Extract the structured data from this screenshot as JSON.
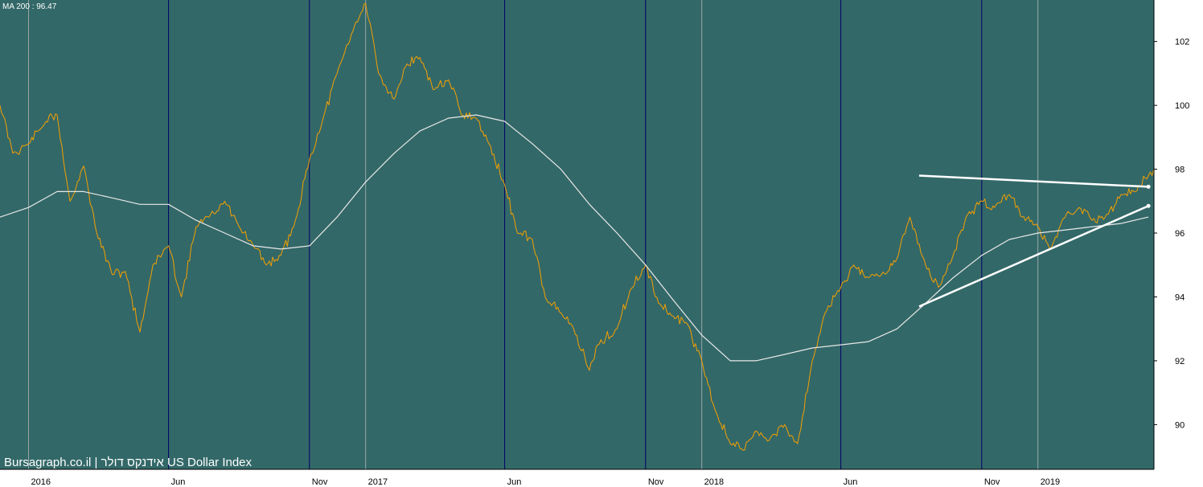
{
  "chart_data": {
    "type": "line",
    "title": "Bursagraph.co.il | אידנקס דולר US Dollar Index",
    "indicator_label": "MA 200 : 96.47",
    "y_ticks": [
      90,
      92,
      94,
      96,
      98,
      100,
      102
    ],
    "ylim": [
      88.6,
      103.3
    ],
    "x_tick_labels": [
      {
        "label": "2016",
        "date": "2016-01-01",
        "year_start": true
      },
      {
        "label": "Jun",
        "date": "2016-06-01",
        "year_start": false
      },
      {
        "label": "Nov",
        "date": "2016-11-01",
        "year_start": false
      },
      {
        "label": "2017",
        "date": "2017-01-01",
        "year_start": true
      },
      {
        "label": "Jun",
        "date": "2017-06-01",
        "year_start": false
      },
      {
        "label": "Nov",
        "date": "2017-11-01",
        "year_start": false
      },
      {
        "label": "2018",
        "date": "2018-01-01",
        "year_start": true
      },
      {
        "label": "Jun",
        "date": "2018-06-01",
        "year_start": false
      },
      {
        "label": "Nov",
        "date": "2018-11-01",
        "year_start": false
      },
      {
        "label": "2019",
        "date": "2019-01-01",
        "year_start": true
      }
    ],
    "xlim": [
      "2015-12-01",
      "2019-05-07"
    ],
    "grid": true,
    "series": [
      {
        "name": "US Dollar Index",
        "color": "#f5a000",
        "x": [
          "2015-12-01",
          "2015-12-15",
          "2016-01-01",
          "2016-01-20",
          "2016-02-01",
          "2016-02-15",
          "2016-03-01",
          "2016-03-15",
          "2016-04-01",
          "2016-04-15",
          "2016-05-01",
          "2016-05-15",
          "2016-06-01",
          "2016-06-15",
          "2016-07-01",
          "2016-07-15",
          "2016-08-01",
          "2016-08-15",
          "2016-09-01",
          "2016-09-15",
          "2016-10-01",
          "2016-10-15",
          "2016-11-01",
          "2016-11-15",
          "2016-12-01",
          "2016-12-20",
          "2017-01-01",
          "2017-01-15",
          "2017-02-01",
          "2017-02-15",
          "2017-03-01",
          "2017-03-15",
          "2017-04-01",
          "2017-04-15",
          "2017-05-01",
          "2017-05-15",
          "2017-06-01",
          "2017-06-15",
          "2017-07-01",
          "2017-07-15",
          "2017-08-01",
          "2017-08-15",
          "2017-09-01",
          "2017-09-10",
          "2017-10-01",
          "2017-10-15",
          "2017-11-01",
          "2017-11-15",
          "2017-12-01",
          "2017-12-15",
          "2018-01-01",
          "2018-01-15",
          "2018-02-01",
          "2018-02-15",
          "2018-03-01",
          "2018-03-15",
          "2018-04-01",
          "2018-04-15",
          "2018-05-01",
          "2018-05-15",
          "2018-06-01",
          "2018-06-15",
          "2018-07-01",
          "2018-07-15",
          "2018-08-01",
          "2018-08-15",
          "2018-09-01",
          "2018-09-15",
          "2018-10-01",
          "2018-10-15",
          "2018-11-01",
          "2018-11-15",
          "2018-12-01",
          "2018-12-15",
          "2019-01-01",
          "2019-01-15",
          "2019-02-01",
          "2019-02-15",
          "2019-03-01",
          "2019-03-15",
          "2019-04-01",
          "2019-04-15",
          "2019-05-01",
          "2019-05-07"
        ],
        "values": [
          100.0,
          98.5,
          98.8,
          99.5,
          99.7,
          97.0,
          98.1,
          96.0,
          94.7,
          94.8,
          92.9,
          95.0,
          95.6,
          94.0,
          96.2,
          96.5,
          97.0,
          96.3,
          95.6,
          95.0,
          95.3,
          96.2,
          98.3,
          99.5,
          101.0,
          102.5,
          103.2,
          101.0,
          100.2,
          101.3,
          101.5,
          100.5,
          100.8,
          99.7,
          99.6,
          98.8,
          97.5,
          96.0,
          95.8,
          94.0,
          93.5,
          93.0,
          91.7,
          92.5,
          93.0,
          94.2,
          95.0,
          93.8,
          93.4,
          93.2,
          92.0,
          90.5,
          89.4,
          89.2,
          89.8,
          89.5,
          90.0,
          89.4,
          92.0,
          93.5,
          94.3,
          95.0,
          94.6,
          94.7,
          95.2,
          96.5,
          95.0,
          94.3,
          95.3,
          96.5,
          97.0,
          96.8,
          97.2,
          96.5,
          96.2,
          95.5,
          96.6,
          96.8,
          96.4,
          96.5,
          97.2,
          97.3,
          97.8,
          98.0
        ],
        "smooth_noise": true
      },
      {
        "name": "MA 200",
        "color": "#e8e8e8",
        "x": [
          "2015-12-01",
          "2016-01-01",
          "2016-02-01",
          "2016-03-01",
          "2016-04-01",
          "2016-05-01",
          "2016-06-01",
          "2016-07-01",
          "2016-08-01",
          "2016-09-01",
          "2016-10-01",
          "2016-11-01",
          "2016-12-01",
          "2017-01-01",
          "2017-02-01",
          "2017-03-01",
          "2017-04-01",
          "2017-05-01",
          "2017-06-01",
          "2017-07-01",
          "2017-08-01",
          "2017-09-01",
          "2017-10-01",
          "2017-11-01",
          "2017-12-01",
          "2018-01-01",
          "2018-02-01",
          "2018-03-01",
          "2018-04-01",
          "2018-05-01",
          "2018-06-01",
          "2018-07-01",
          "2018-08-01",
          "2018-09-01",
          "2018-10-01",
          "2018-11-01",
          "2018-12-01",
          "2019-01-01",
          "2019-02-01",
          "2019-03-01",
          "2019-04-01",
          "2019-05-01"
        ],
        "values": [
          96.5,
          96.8,
          97.3,
          97.3,
          97.1,
          96.9,
          96.9,
          96.4,
          96.0,
          95.6,
          95.5,
          95.6,
          96.5,
          97.6,
          98.5,
          99.2,
          99.6,
          99.7,
          99.5,
          98.8,
          98.0,
          96.9,
          96.0,
          95.0,
          93.9,
          92.8,
          92.0,
          92.0,
          92.2,
          92.4,
          92.5,
          92.6,
          93.0,
          93.8,
          94.6,
          95.3,
          95.8,
          96.0,
          96.1,
          96.2,
          96.3,
          96.5
        ],
        "smooth_noise": false
      }
    ],
    "trendlines": [
      {
        "name": "upper-trendline",
        "color": "#ffffff",
        "start": {
          "x": "2018-08-25",
          "y": 97.8
        },
        "end": {
          "x": "2019-05-01",
          "y": 97.45
        }
      },
      {
        "name": "lower-trendline",
        "color": "#ffffff",
        "start": {
          "x": "2018-08-25",
          "y": 93.7
        },
        "end": {
          "x": "2019-05-01",
          "y": 96.85
        }
      }
    ],
    "colors": {
      "plot_background": "#336868",
      "year_gridline": "#9aa7a7",
      "month_gridline": "#000066",
      "axis_background": "#ffffff"
    }
  }
}
